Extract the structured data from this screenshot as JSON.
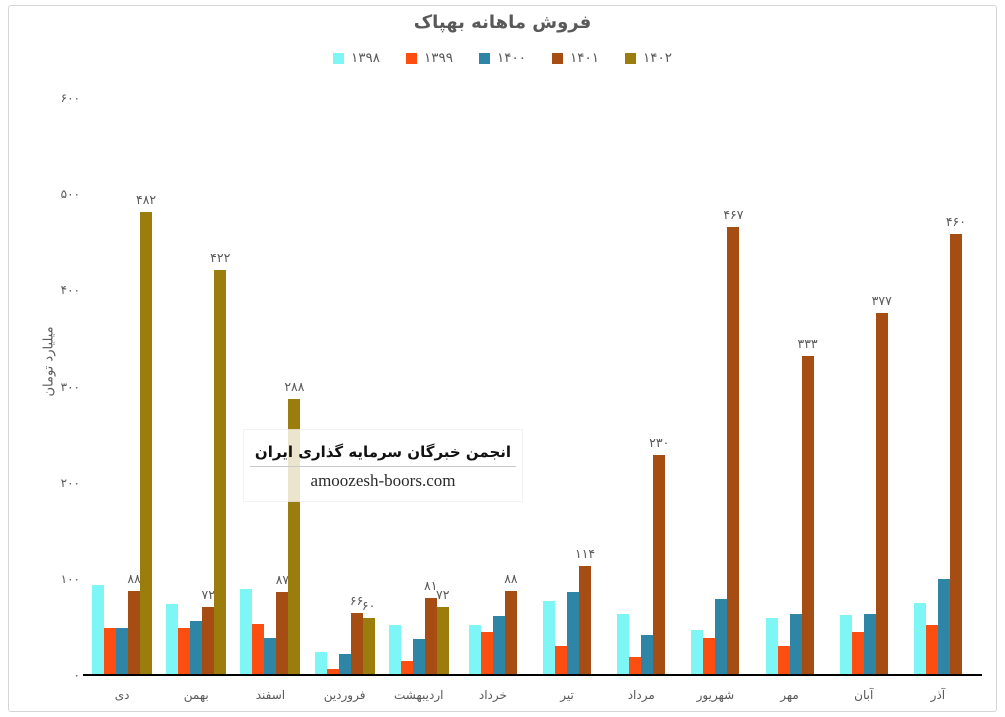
{
  "chart_title": "فروش ماهانه بهپاک",
  "watermark": {
    "line1": "انجمن خبرگان سرمایه گذاری ایران",
    "line2": "amoozesh-boors.com"
  },
  "colors": {
    "axis_text": "#595959",
    "axis_line": "#000000",
    "frame_border": "#d5d5d5"
  },
  "chart_data": {
    "type": "bar",
    "title": "فروش ماهانه بهپاک",
    "xlabel": "",
    "ylabel": "میلیارد تومان",
    "ylim": [
      0,
      600
    ],
    "grid": false,
    "legend_position": "top",
    "y_ticks": [
      {
        "value": 600,
        "label": "۶۰۰"
      },
      {
        "value": 500,
        "label": "۵۰۰"
      },
      {
        "value": 400,
        "label": "۴۰۰"
      },
      {
        "value": 300,
        "label": "۳۰۰"
      },
      {
        "value": 200,
        "label": "۲۰۰"
      },
      {
        "value": 100,
        "label": "۱۰۰"
      },
      {
        "value": 0,
        "label": "۰"
      }
    ],
    "categories": [
      "دی",
      "بهمن",
      "اسفند",
      "فروردین",
      "اردیبهشت",
      "خرداد",
      "تیر",
      "مرداد",
      "شهریور",
      "مهر",
      "آبان",
      "آذر"
    ],
    "series": [
      {
        "name": "۱۳۹۸",
        "year": 1398,
        "color": "#7ff6f6",
        "values": [
          95,
          75,
          90,
          25,
          53,
          53,
          78,
          64,
          48,
          60,
          63,
          76
        ],
        "labels": [
          null,
          null,
          null,
          null,
          null,
          null,
          null,
          null,
          null,
          null,
          null,
          null
        ]
      },
      {
        "name": "۱۳۹۹",
        "year": 1399,
        "color": "#fc4e11",
        "values": [
          50,
          50,
          54,
          7,
          16,
          46,
          31,
          20,
          40,
          31,
          46,
          53
        ],
        "labels": [
          null,
          null,
          null,
          null,
          null,
          null,
          null,
          null,
          null,
          null,
          null,
          null
        ]
      },
      {
        "name": "۱۴۰۰",
        "year": 1400,
        "color": "#2e85a6",
        "values": [
          50,
          57,
          40,
          23,
          38,
          62,
          87,
          43,
          80,
          64,
          64,
          101
        ],
        "labels": [
          null,
          null,
          null,
          null,
          null,
          null,
          null,
          null,
          null,
          null,
          null,
          null
        ]
      },
      {
        "name": "۱۴۰۱",
        "year": 1401,
        "color": "#a54d12",
        "values": [
          88,
          72,
          87,
          66,
          81,
          88,
          114,
          230,
          467,
          333,
          377,
          460
        ],
        "labels": [
          "۸۸",
          "۷۲",
          "۸۷",
          "۶۶",
          "۸۱",
          "۸۸",
          "۱۱۴",
          "۲۳۰",
          "۴۶۷",
          "۳۳۳",
          "۳۷۷",
          "۴۶۰"
        ]
      },
      {
        "name": "۱۴۰۲",
        "year": 1402,
        "color": "#9b7d0e",
        "values": [
          482,
          422,
          288,
          60,
          72,
          null,
          null,
          null,
          null,
          null,
          null,
          null
        ],
        "labels": [
          "۴۸۲",
          "۴۲۲",
          "۲۸۸",
          "۶۰",
          "۷۲",
          null,
          null,
          null,
          null,
          null,
          null,
          null
        ]
      }
    ]
  }
}
